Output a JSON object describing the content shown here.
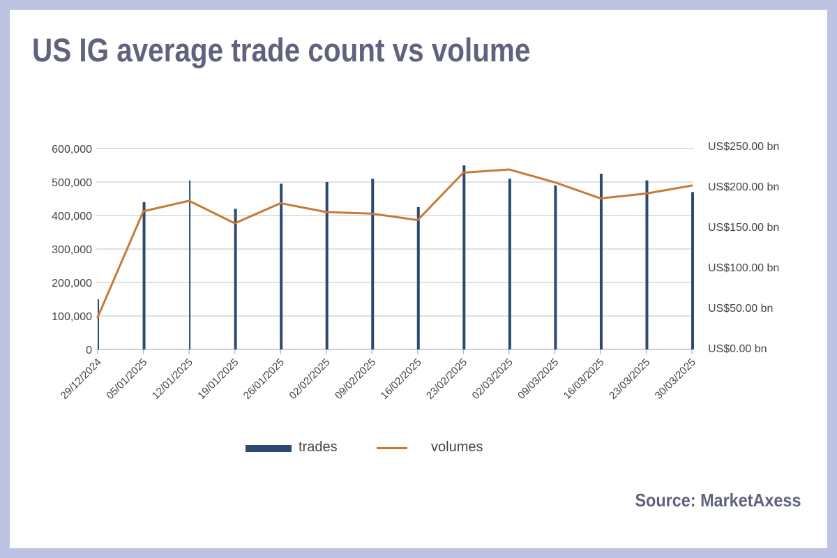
{
  "title": "US IG average trade count vs volume",
  "source": "Source: MarketAxess",
  "colors": {
    "background": "#bcc3e2",
    "title": "#60627e",
    "trades": "#2c4a70",
    "volumes": "#c87a35",
    "grid": "#d5d5d5"
  },
  "chart_data": {
    "type": "bar",
    "categories": [
      "29/12/2024",
      "05/01/2025",
      "12/01/2025",
      "19/01/2025",
      "26/01/2025",
      "02/02/2025",
      "09/02/2025",
      "16/02/2025",
      "23/02/2025",
      "02/03/2025",
      "09/03/2025",
      "16/03/2025",
      "23/03/2025",
      "30/03/2025"
    ],
    "y_left": {
      "ylim": [
        0,
        600000
      ],
      "ticks": [
        0,
        100000,
        200000,
        300000,
        400000,
        500000,
        600000
      ],
      "tick_labels": [
        "0",
        "100,000",
        "200,000",
        "300,000",
        "400,000",
        "500,000",
        "600,000"
      ]
    },
    "y_right": {
      "ylim": [
        0,
        250
      ],
      "ticks": [
        0,
        50,
        100,
        150,
        200,
        250
      ],
      "tick_labels": [
        "US$0.00 bn",
        "US$50.00 bn",
        "US$100.00 bn",
        "US$150.00 bn",
        "US$200.00 bn",
        "US$250.00 bn"
      ]
    },
    "series": [
      {
        "name": "trades",
        "type": "bar",
        "axis": "left",
        "color": "#2c4a70",
        "values": [
          150000,
          440000,
          505000,
          420000,
          495000,
          500000,
          510000,
          425000,
          550000,
          510000,
          490000,
          525000,
          505000,
          470000
        ]
      },
      {
        "name": "volumes",
        "type": "line",
        "axis": "right",
        "color": "#c87a35",
        "values": [
          40,
          172,
          185,
          157,
          182,
          171,
          169,
          161,
          220,
          224,
          208,
          188,
          194,
          204
        ]
      }
    ],
    "legend_position": "bottom",
    "grid": true
  }
}
